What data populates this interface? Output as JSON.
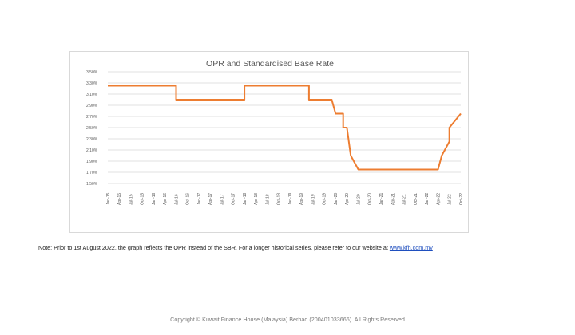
{
  "note": {
    "text": "Note: Prior to 1st August 2022, the graph reflects the OPR instead of the SBR. For a longer historical series, please refer to our website at ",
    "link": "www.kfh.com.my"
  },
  "copyright": "Copyright © Kuwait Finance House (Malaysia) Berhad (200401033666). All Rights Reserved",
  "colors": {
    "line": "#ED7D31",
    "grid": "#d9d9d9",
    "text": "#595959"
  },
  "chart_data": {
    "type": "line",
    "title": "OPR and Standardised Base Rate",
    "xlabel": "",
    "ylabel": "",
    "grid": true,
    "legend": "none",
    "ylim": [
      1.5,
      3.5
    ],
    "yticks": [
      "3.50%",
      "3.30%",
      "3.10%",
      "2.90%",
      "2.70%",
      "2.50%",
      "2.30%",
      "2.10%",
      "1.90%",
      "1.70%",
      "1.50%"
    ],
    "xticks": [
      "Jan-15",
      "Apr-15",
      "Jul-15",
      "Oct-15",
      "Jan-16",
      "Apr-16",
      "Jul-16",
      "Oct-16",
      "Jan-17",
      "Apr-17",
      "Jul-17",
      "Oct-17",
      "Jan-18",
      "Apr-18",
      "Jul-18",
      "Oct-18",
      "Jan-19",
      "Apr-19",
      "Jul-19",
      "Oct-19",
      "Jan-20",
      "Apr-20",
      "Jul-20",
      "Oct-20",
      "Jan-21",
      "Apr-21",
      "Jul-21",
      "Oct-21",
      "Jan-22",
      "Apr-22",
      "Jul-22",
      "Oct-22"
    ],
    "series": [
      {
        "x": [
          "Jan-15",
          "Jul-16",
          "Jul-16",
          "Jan-18",
          "Jan-18",
          "Jun-19",
          "Jun-19",
          "Dec-19",
          "Jan-20",
          "Mar-20",
          "Mar-20",
          "Apr-20",
          "May-20",
          "May-20",
          "Jul-20",
          "Jul-20",
          "Apr-22",
          "May-22",
          "May-22",
          "Jul-22",
          "Jul-22",
          "Oct-22"
        ],
        "values": [
          3.25,
          3.25,
          3.0,
          3.0,
          3.25,
          3.25,
          3.0,
          3.0,
          2.75,
          2.75,
          2.5,
          2.5,
          2.0,
          2.0,
          1.75,
          1.75,
          1.75,
          2.0,
          2.0,
          2.25,
          2.5,
          2.75
        ]
      }
    ]
  }
}
